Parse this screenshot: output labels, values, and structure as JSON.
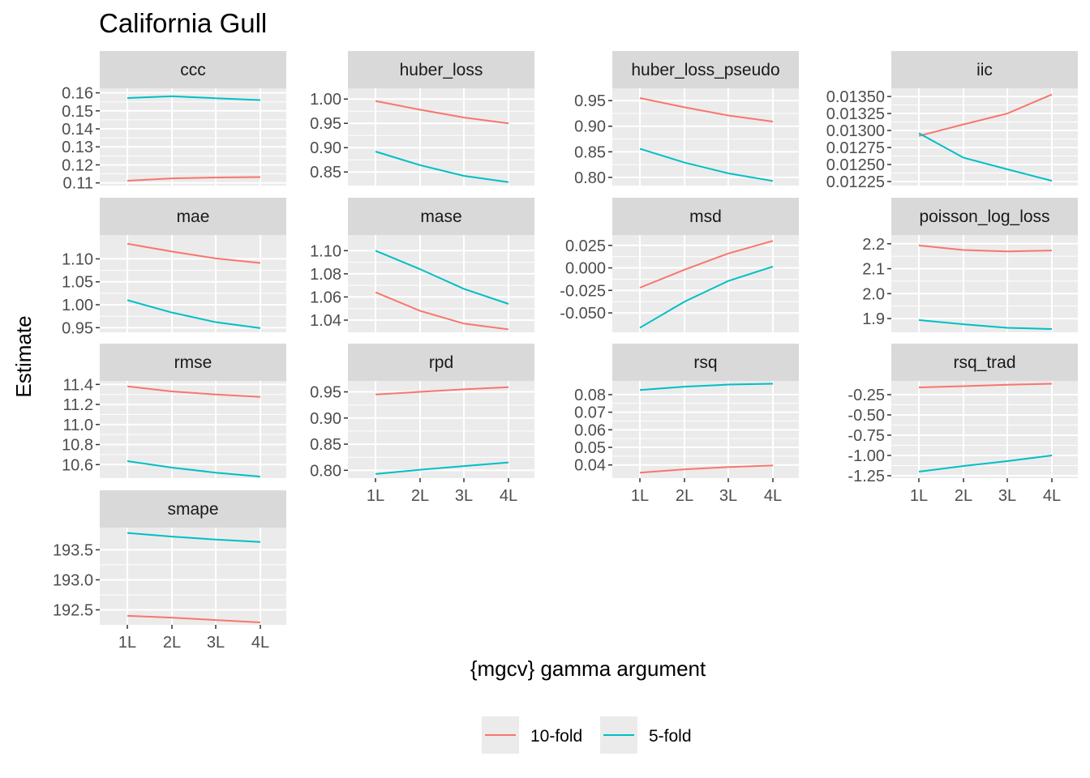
{
  "chart_data": {
    "type": "line",
    "title": "California Gull",
    "xlabel": "{mgcv} gamma argument",
    "ylabel": "Estimate",
    "categories": [
      "1L",
      "2L",
      "3L",
      "4L"
    ],
    "legend": {
      "placement": "bottom",
      "entries": [
        {
          "name": "10-fold",
          "color": "#F8766D"
        },
        {
          "name": "5-fold",
          "color": "#00BFC4"
        }
      ]
    },
    "panels": [
      {
        "name": "ccc",
        "ylim": [
          0.1085,
          0.1625
        ],
        "ticks": [
          0.11,
          0.12,
          0.13,
          0.14,
          0.15,
          0.16
        ],
        "tick_labels": [
          "0.11",
          "0.12",
          "0.13",
          "0.14",
          "0.15",
          "0.16"
        ],
        "series": [
          {
            "name": "10-fold",
            "values": [
              0.1112,
              0.1125,
              0.113,
              0.1132
            ]
          },
          {
            "name": "5-fold",
            "values": [
              0.1571,
              0.1581,
              0.157,
              0.156
            ]
          }
        ]
      },
      {
        "name": "huber_loss",
        "ylim": [
          0.822,
          1.022
        ],
        "ticks": [
          0.85,
          0.9,
          0.95,
          1.0
        ],
        "tick_labels": [
          "0.85",
          "0.90",
          "0.95",
          "1.00"
        ],
        "series": [
          {
            "name": "10-fold",
            "values": [
              0.996,
              0.978,
              0.962,
              0.95
            ]
          },
          {
            "name": "5-fold",
            "values": [
              0.892,
              0.864,
              0.842,
              0.829
            ]
          }
        ]
      },
      {
        "name": "huber_loss_pseudo",
        "ylim": [
          0.784,
          0.974
        ],
        "ticks": [
          0.8,
          0.85,
          0.9,
          0.95
        ],
        "tick_labels": [
          "0.80",
          "0.85",
          "0.90",
          "0.95"
        ],
        "series": [
          {
            "name": "10-fold",
            "values": [
              0.955,
              0.937,
              0.921,
              0.909
            ]
          },
          {
            "name": "5-fold",
            "values": [
              0.856,
              0.829,
              0.808,
              0.793
            ]
          }
        ]
      },
      {
        "name": "iic",
        "ylim": [
          0.01219,
          0.01362
        ],
        "ticks": [
          0.01225,
          0.0125,
          0.01275,
          0.013,
          0.01325,
          0.0135
        ],
        "tick_labels": [
          "0.01225",
          "0.01250",
          "0.01275",
          "0.01300",
          "0.01325",
          "0.01350"
        ],
        "series": [
          {
            "name": "10-fold",
            "values": [
              0.01292,
              0.01309,
              0.01325,
              0.01353
            ]
          },
          {
            "name": "5-fold",
            "values": [
              0.01296,
              0.0126,
              0.01243,
              0.01226
            ]
          }
        ]
      },
      {
        "name": "mae",
        "ylim": [
          0.94,
          1.152
        ],
        "ticks": [
          0.95,
          1.0,
          1.05,
          1.1
        ],
        "tick_labels": [
          "0.95",
          "1.00",
          "1.05",
          "1.10"
        ],
        "series": [
          {
            "name": "10-fold",
            "values": [
              1.133,
              1.116,
              1.101,
              1.091
            ]
          },
          {
            "name": "5-fold",
            "values": [
              1.01,
              0.983,
              0.962,
              0.949
            ]
          }
        ]
      },
      {
        "name": "mase",
        "ylim": [
          1.0295,
          1.1135
        ],
        "ticks": [
          1.04,
          1.06,
          1.08,
          1.1
        ],
        "tick_labels": [
          "1.04",
          "1.06",
          "1.08",
          "1.10"
        ],
        "series": [
          {
            "name": "10-fold",
            "values": [
              1.064,
              1.048,
              1.037,
              1.032
            ]
          },
          {
            "name": "5-fold",
            "values": [
              1.1,
              1.084,
              1.067,
              1.054
            ]
          }
        ]
      },
      {
        "name": "msd",
        "ylim": [
          -0.0715,
          0.0365
        ],
        "ticks": [
          -0.05,
          -0.025,
          0.0,
          0.025
        ],
        "tick_labels": [
          "-0.050",
          "-0.025",
          "0.000",
          "0.025"
        ],
        "series": [
          {
            "name": "10-fold",
            "values": [
              -0.022,
              -0.002,
              0.016,
              0.03
            ]
          },
          {
            "name": "5-fold",
            "values": [
              -0.0665,
              -0.0375,
              -0.0145,
              0.0015
            ]
          }
        ]
      },
      {
        "name": "poisson_log_loss",
        "ylim": [
          1.845,
          2.235
        ],
        "ticks": [
          1.9,
          2.0,
          2.1,
          2.2
        ],
        "tick_labels": [
          "1.9",
          "2.0",
          "2.1",
          "2.2"
        ],
        "series": [
          {
            "name": "10-fold",
            "values": [
              2.193,
              2.175,
              2.169,
              2.173
            ]
          },
          {
            "name": "5-fold",
            "values": [
              1.894,
              1.877,
              1.863,
              1.858
            ]
          }
        ]
      },
      {
        "name": "rmse",
        "ylim": [
          10.465,
          11.435
        ],
        "ticks": [
          10.6,
          10.8,
          11.0,
          11.2,
          11.4
        ],
        "tick_labels": [
          "10.6",
          "10.8",
          "11.0",
          "11.2",
          "11.4"
        ],
        "series": [
          {
            "name": "10-fold",
            "values": [
              11.38,
              11.33,
              11.3,
              11.275
            ]
          },
          {
            "name": "5-fold",
            "values": [
              10.635,
              10.57,
              10.52,
              10.48
            ]
          }
        ]
      },
      {
        "name": "rpd",
        "ylim": [
          0.785,
          0.971
        ],
        "ticks": [
          0.8,
          0.85,
          0.9,
          0.95
        ],
        "tick_labels": [
          "0.80",
          "0.85",
          "0.90",
          "0.95"
        ],
        "series": [
          {
            "name": "10-fold",
            "values": [
              0.945,
              0.95,
              0.955,
              0.959
            ]
          },
          {
            "name": "5-fold",
            "values": [
              0.793,
              0.801,
              0.808,
              0.815
            ]
          }
        ]
      },
      {
        "name": "rsq",
        "ylim": [
          0.0325,
          0.0878
        ],
        "ticks": [
          0.04,
          0.05,
          0.06,
          0.07,
          0.08
        ],
        "tick_labels": [
          "0.04",
          "0.05",
          "0.06",
          "0.07",
          "0.08"
        ],
        "series": [
          {
            "name": "10-fold",
            "values": [
              0.0356,
              0.0375,
              0.0388,
              0.0397
            ]
          },
          {
            "name": "5-fold",
            "values": [
              0.0826,
              0.0845,
              0.0857,
              0.0862
            ]
          }
        ]
      },
      {
        "name": "rsq_trad",
        "ylim": [
          -1.28,
          -0.08
        ],
        "ticks": [
          -1.25,
          -1.0,
          -0.75,
          -0.5,
          -0.25
        ],
        "tick_labels": [
          "-1.25",
          "-1.00",
          "-0.75",
          "-0.50",
          "-0.25"
        ],
        "series": [
          {
            "name": "10-fold",
            "values": [
              -0.16,
              -0.145,
              -0.128,
              -0.115
            ]
          },
          {
            "name": "5-fold",
            "values": [
              -1.2,
              -1.13,
              -1.07,
              -1.0
            ]
          }
        ]
      },
      {
        "name": "smape",
        "ylim": [
          192.25,
          193.87
        ],
        "ticks": [
          192.5,
          193.0,
          193.5
        ],
        "tick_labels": [
          "192.5",
          "193.0",
          "193.5"
        ],
        "series": [
          {
            "name": "10-fold",
            "values": [
              192.4,
              192.37,
              192.33,
              192.29
            ]
          },
          {
            "name": "5-fold",
            "values": [
              193.78,
              193.72,
              193.67,
              193.63
            ]
          }
        ]
      }
    ]
  }
}
